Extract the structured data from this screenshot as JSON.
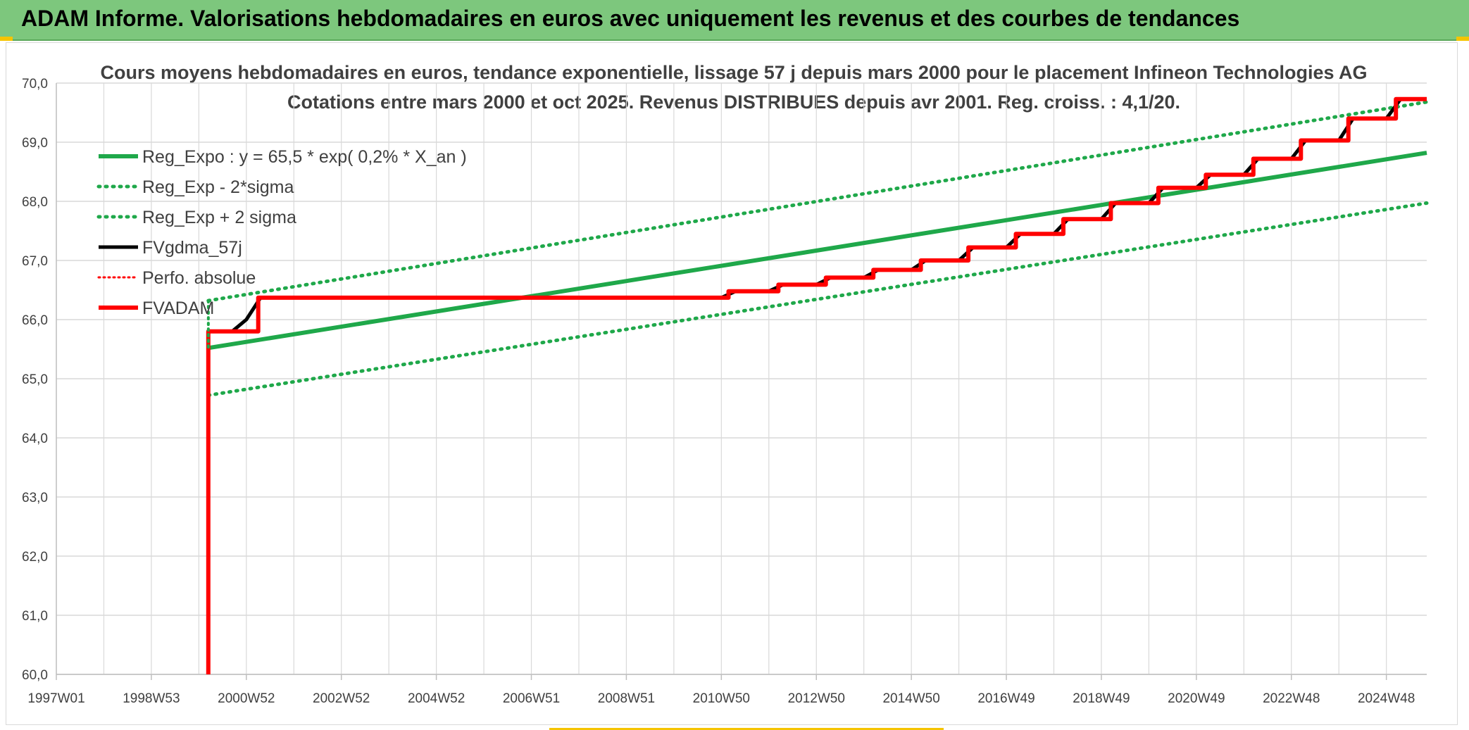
{
  "banner": {
    "title": "ADAM Informe. Valorisations hebdomadaires en euros avec uniquement les revenus et des courbes de tendances"
  },
  "colors": {
    "banner_bg": "#7dc77d",
    "green": "#1fa84a",
    "red": "#ff0000",
    "black": "#000000",
    "grid": "#d9d9d9"
  },
  "chart_data": {
    "type": "line",
    "title": "Cours moyens hebdomadaires en euros, tendance exponentielle, lissage 57 j depuis mars 2000 pour le placement Infineon Technologies AG",
    "subtitle": "Cotations entre mars 2000 et oct 2025. Revenus DISTRIBUES depuis avr 2001. Reg. croiss. : 4,1/20.",
    "xlabel": "",
    "ylabel": "",
    "x_range_years": [
      1997.0,
      2025.85
    ],
    "ylim": [
      60.0,
      70.0
    ],
    "y_ticks": [
      "60,0",
      "61,0",
      "62,0",
      "63,0",
      "64,0",
      "65,0",
      "66,0",
      "67,0",
      "68,0",
      "69,0",
      "70,0"
    ],
    "x_ticks": [
      {
        "label": "1997W01",
        "year": 1997.0
      },
      {
        "label": "1998W53",
        "year": 1999.0
      },
      {
        "label": "2000W52",
        "year": 2001.0
      },
      {
        "label": "2002W52",
        "year": 2003.0
      },
      {
        "label": "2004W52",
        "year": 2005.0
      },
      {
        "label": "2006W51",
        "year": 2007.0
      },
      {
        "label": "2008W51",
        "year": 2009.0
      },
      {
        "label": "2010W50",
        "year": 2011.0
      },
      {
        "label": "2012W50",
        "year": 2013.0
      },
      {
        "label": "2014W50",
        "year": 2015.0
      },
      {
        "label": "2016W49",
        "year": 2017.0
      },
      {
        "label": "2018W49",
        "year": 2019.0
      },
      {
        "label": "2020W49",
        "year": 2021.0
      },
      {
        "label": "2022W48",
        "year": 2023.0
      },
      {
        "label": "2024W48",
        "year": 2025.0
      }
    ],
    "legend_position": "top-left",
    "grid": true,
    "series": [
      {
        "name": "Reg_Expo : y = 65,5 * exp( 0,2% *  X_an )",
        "style": "solid-green",
        "points": [
          [
            2000.2,
            65.52
          ],
          [
            2025.85,
            68.82
          ]
        ]
      },
      {
        "name": "Reg_Exp - 2*sigma",
        "style": "dotted-green",
        "points": [
          [
            2000.2,
            64.72
          ],
          [
            2025.85,
            67.97
          ]
        ]
      },
      {
        "name": "Reg_Exp + 2 sigma",
        "style": "dotted-green",
        "points": [
          [
            2000.2,
            66.32
          ],
          [
            2025.85,
            69.68
          ]
        ]
      },
      {
        "name": "FVgdma_57j",
        "style": "solid-black",
        "points": [
          [
            2000.2,
            65.8
          ],
          [
            2000.7,
            65.8
          ],
          [
            2001.0,
            66.0
          ],
          [
            2001.3,
            66.37
          ],
          [
            2011.0,
            66.37
          ],
          [
            2011.3,
            66.48
          ],
          [
            2012.0,
            66.48
          ],
          [
            2012.3,
            66.59
          ],
          [
            2013.0,
            66.59
          ],
          [
            2013.3,
            66.71
          ],
          [
            2014.0,
            66.71
          ],
          [
            2014.3,
            66.84
          ],
          [
            2015.0,
            66.84
          ],
          [
            2015.3,
            67.0
          ],
          [
            2016.0,
            67.0
          ],
          [
            2016.3,
            67.22
          ],
          [
            2017.0,
            67.22
          ],
          [
            2017.3,
            67.45
          ],
          [
            2018.0,
            67.45
          ],
          [
            2018.3,
            67.7
          ],
          [
            2019.0,
            67.7
          ],
          [
            2019.3,
            67.97
          ],
          [
            2020.0,
            67.97
          ],
          [
            2020.3,
            68.23
          ],
          [
            2021.0,
            68.23
          ],
          [
            2021.3,
            68.45
          ],
          [
            2022.0,
            68.45
          ],
          [
            2022.3,
            68.72
          ],
          [
            2023.0,
            68.72
          ],
          [
            2023.3,
            69.03
          ],
          [
            2024.0,
            69.03
          ],
          [
            2024.3,
            69.4
          ],
          [
            2025.0,
            69.4
          ],
          [
            2025.3,
            69.73
          ],
          [
            2025.85,
            69.73
          ]
        ]
      },
      {
        "name": "Perfo. absolue",
        "style": "dotted-red",
        "points": []
      },
      {
        "name": "FVADAM",
        "style": "solid-red",
        "points": [
          [
            2000.2,
            60.0
          ],
          [
            2000.2,
            65.8
          ],
          [
            2001.25,
            65.8
          ],
          [
            2001.25,
            66.37
          ],
          [
            2011.15,
            66.37
          ],
          [
            2011.15,
            66.48
          ],
          [
            2012.2,
            66.48
          ],
          [
            2012.2,
            66.59
          ],
          [
            2013.2,
            66.59
          ],
          [
            2013.2,
            66.71
          ],
          [
            2014.2,
            66.71
          ],
          [
            2014.2,
            66.84
          ],
          [
            2015.2,
            66.84
          ],
          [
            2015.2,
            67.0
          ],
          [
            2016.2,
            67.0
          ],
          [
            2016.2,
            67.22
          ],
          [
            2017.2,
            67.22
          ],
          [
            2017.2,
            67.45
          ],
          [
            2018.2,
            67.45
          ],
          [
            2018.2,
            67.7
          ],
          [
            2019.2,
            67.7
          ],
          [
            2019.2,
            67.97
          ],
          [
            2020.2,
            67.97
          ],
          [
            2020.2,
            68.23
          ],
          [
            2021.2,
            68.23
          ],
          [
            2021.2,
            68.45
          ],
          [
            2022.2,
            68.45
          ],
          [
            2022.2,
            68.72
          ],
          [
            2023.2,
            68.72
          ],
          [
            2023.2,
            69.03
          ],
          [
            2024.2,
            69.03
          ],
          [
            2024.2,
            69.4
          ],
          [
            2025.2,
            69.4
          ],
          [
            2025.2,
            69.73
          ],
          [
            2025.85,
            69.73
          ]
        ]
      }
    ]
  }
}
